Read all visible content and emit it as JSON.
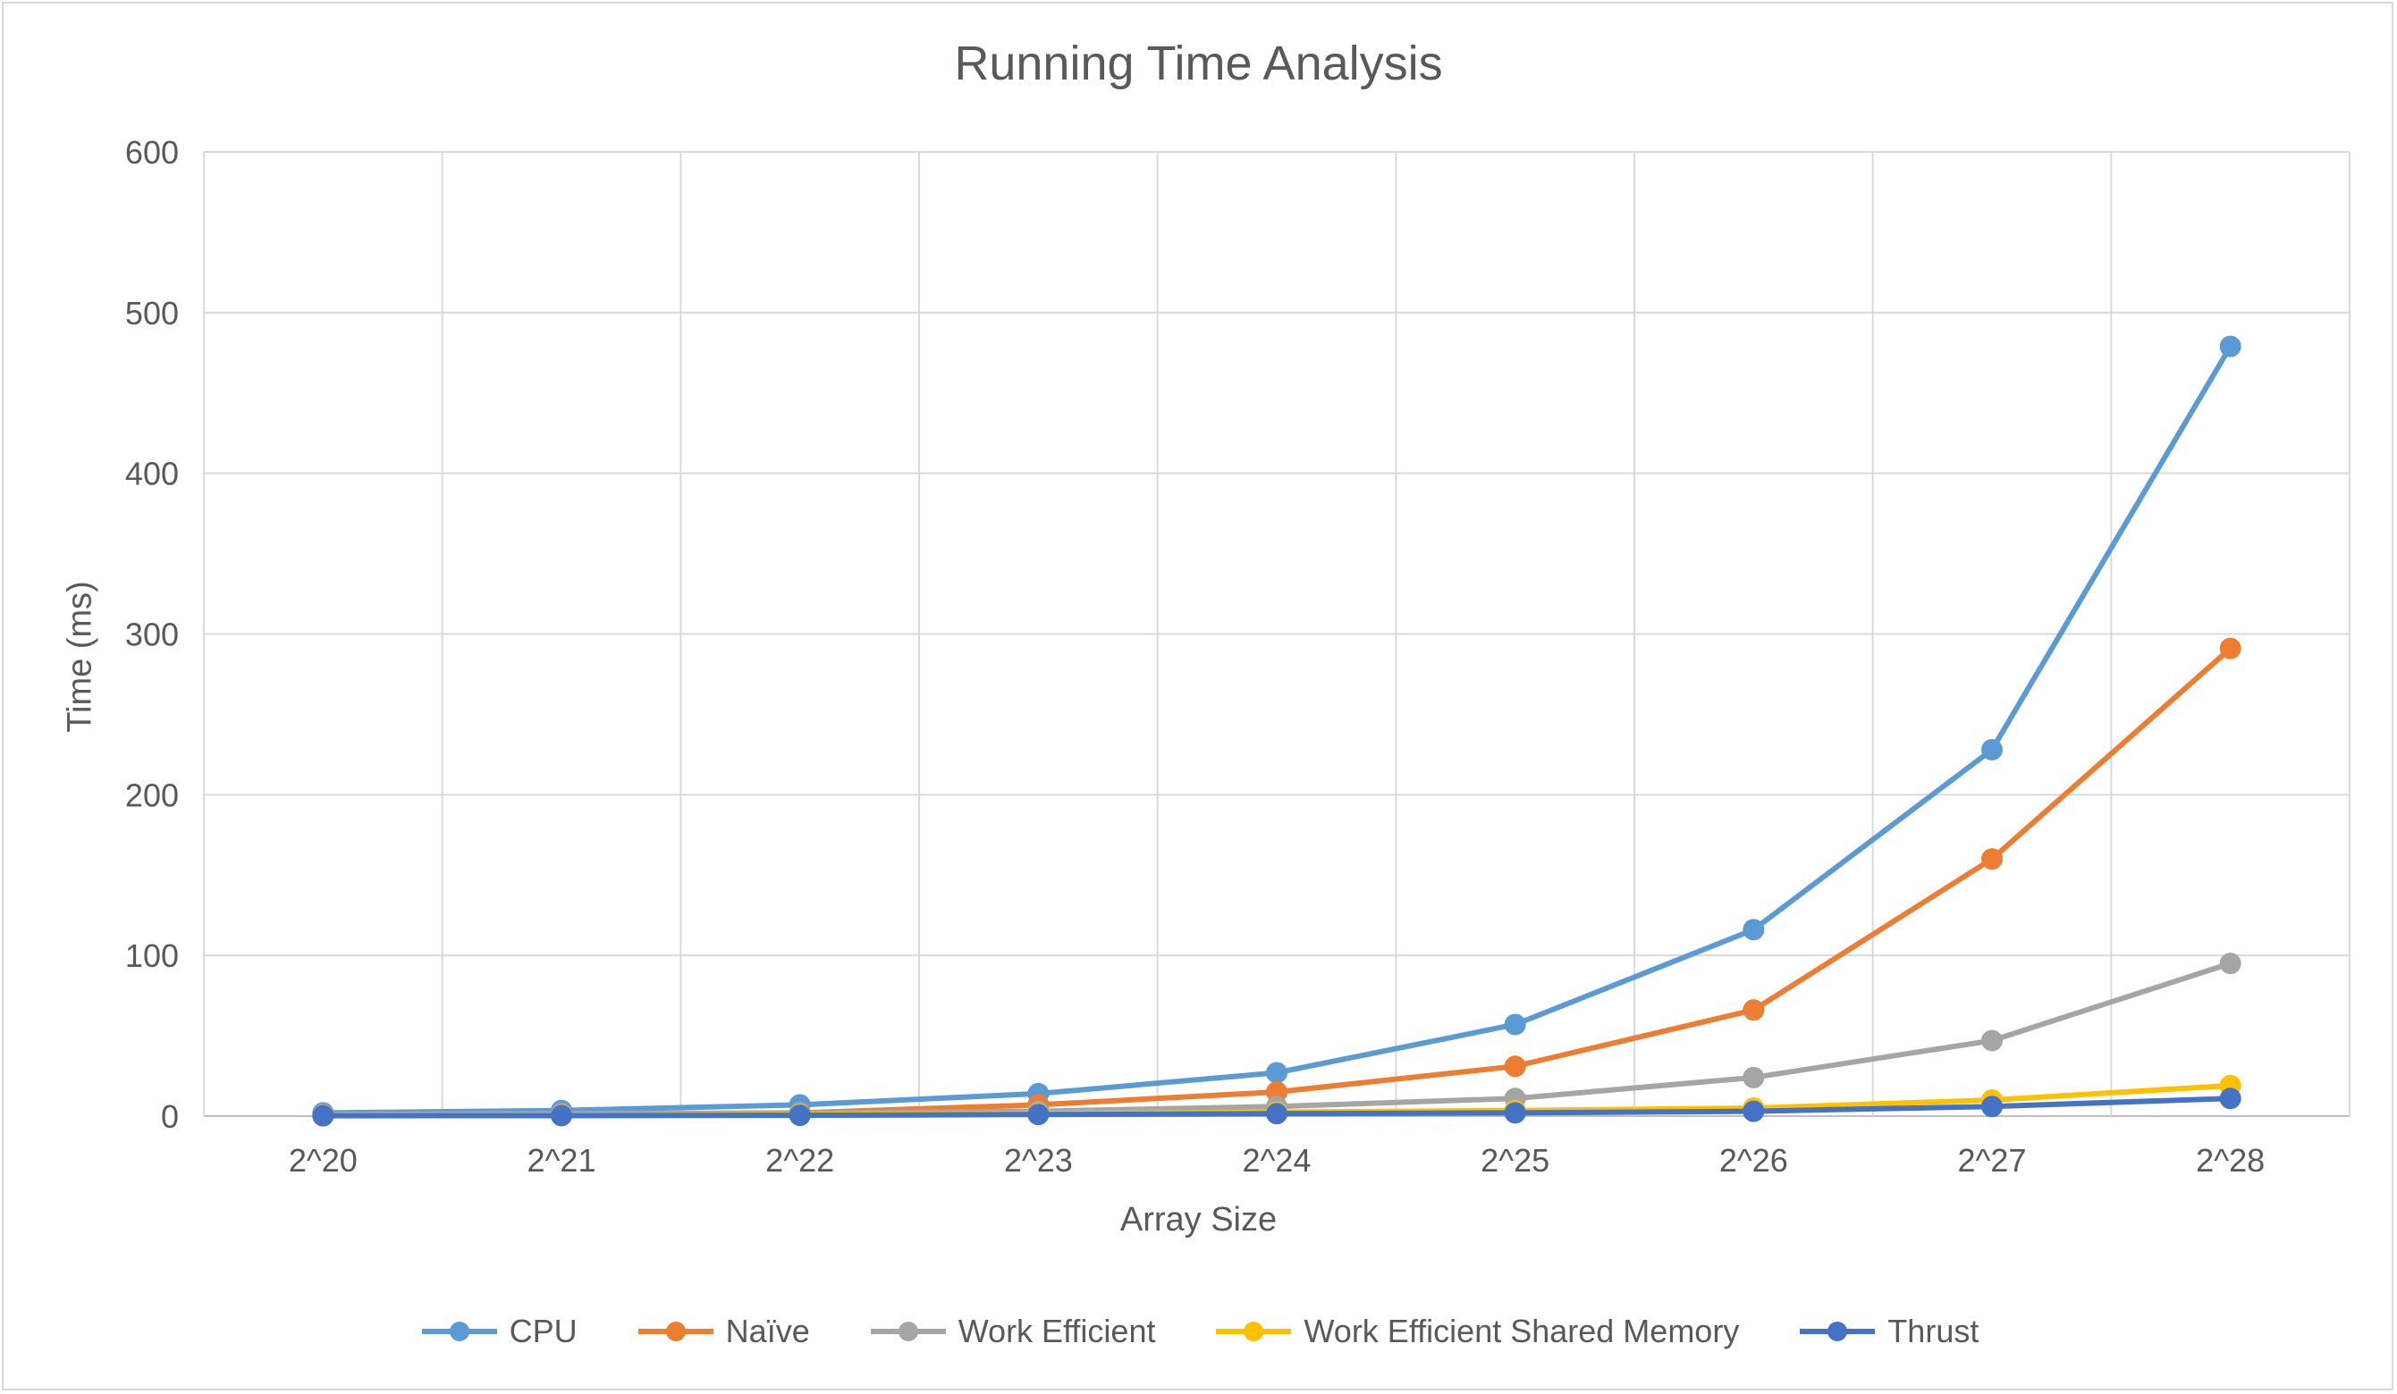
{
  "chart_data": {
    "type": "line",
    "title": "Running Time Analysis",
    "xlabel": "Array Size",
    "ylabel": "Time (ms)",
    "categories": [
      "2^20",
      "2^21",
      "2^22",
      "2^23",
      "2^24",
      "2^25",
      "2^26",
      "2^27",
      "2^28"
    ],
    "ylim": [
      0,
      600
    ],
    "yticks": [
      0,
      100,
      200,
      300,
      400,
      500,
      600
    ],
    "grid": true,
    "legend_position": "bottom",
    "series": [
      {
        "name": "CPU",
        "color": "#5b9bd5",
        "values": [
          2,
          3.5,
          7,
          14,
          27,
          57,
          116,
          228,
          479
        ]
      },
      {
        "name": "Naïve",
        "color": "#ed7d31",
        "values": [
          0.5,
          1,
          2,
          7,
          15,
          31,
          66,
          160,
          291
        ]
      },
      {
        "name": "Work Efficient",
        "color": "#a5a5a5",
        "values": [
          1,
          1.5,
          2,
          3,
          6,
          11,
          24,
          47,
          95
        ]
      },
      {
        "name": "Work Efficient Shared Memory",
        "color": "#ffc000",
        "values": [
          0.3,
          0.5,
          1,
          1.5,
          2.5,
          3.5,
          5,
          10,
          19
        ]
      },
      {
        "name": "Thrust",
        "color": "#4472c4",
        "values": [
          0.2,
          0.3,
          0.5,
          1,
          1.5,
          2,
          3,
          6,
          11
        ]
      }
    ]
  }
}
